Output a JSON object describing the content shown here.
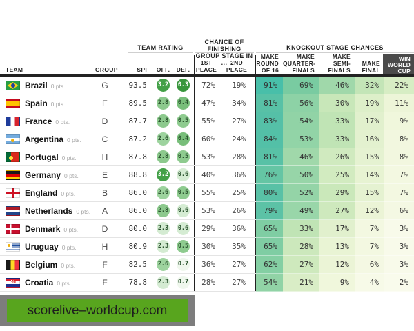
{
  "header_groups": {
    "team_rating": "TEAM RATING",
    "chance": "CHANCE OF FINISHING\nGROUP STAGE IN ...",
    "knockout": "KNOCKOUT STAGE CHANCES"
  },
  "columns": {
    "team": "TEAM",
    "group": "GROUP",
    "spi": "SPI",
    "off": "OFF.",
    "def": "DEF.",
    "p1": "1ST\nPLACE",
    "p2": "2ND\nPLACE",
    "r16": "MAKE\nROUND\nOF 16",
    "qf": "MAKE\nQUARTER-\nFINALS",
    "sf": "MAKE\nSEMI-\nFINALS",
    "final": "MAKE\nFINAL",
    "win": "WIN\nWORLD\nCUP"
  },
  "chart_data": {
    "type": "table",
    "columns": [
      "Team",
      "Points",
      "Group",
      "SPI",
      "Off.",
      "Def.",
      "1st place %",
      "2nd place %",
      "Make round of 16 %",
      "Make quarterfinals %",
      "Make semifinals %",
      "Make final %",
      "Win World Cup %"
    ],
    "rows": [
      {
        "name": "Brazil",
        "pts": "0 pts.",
        "flag": "brazil",
        "group": "G",
        "spi": 93.5,
        "off": 3.2,
        "def": 0.3,
        "p1": 72,
        "p2": 19,
        "r16": 91,
        "qf": 69,
        "sf": 46,
        "final": 32,
        "win": 22
      },
      {
        "name": "Spain",
        "pts": "0 pts.",
        "flag": "spain",
        "group": "E",
        "spi": 89.5,
        "off": 2.8,
        "def": 0.4,
        "p1": 47,
        "p2": 34,
        "r16": 81,
        "qf": 56,
        "sf": 30,
        "final": 19,
        "win": 11
      },
      {
        "name": "France",
        "pts": "0 pts.",
        "flag": "france",
        "group": "D",
        "spi": 87.7,
        "off": 2.8,
        "def": 0.5,
        "p1": 55,
        "p2": 27,
        "r16": 83,
        "qf": 54,
        "sf": 33,
        "final": 17,
        "win": 9
      },
      {
        "name": "Argentina",
        "pts": "0 pts.",
        "flag": "argentina",
        "group": "C",
        "spi": 87.2,
        "off": 2.6,
        "def": 0.4,
        "p1": 60,
        "p2": 24,
        "r16": 84,
        "qf": 53,
        "sf": 33,
        "final": 16,
        "win": 8
      },
      {
        "name": "Portugal",
        "pts": "0 pts.",
        "flag": "portugal",
        "group": "H",
        "spi": 87.8,
        "off": 2.8,
        "def": 0.5,
        "p1": 53,
        "p2": 28,
        "r16": 81,
        "qf": 46,
        "sf": 26,
        "final": 15,
        "win": 8
      },
      {
        "name": "Germany",
        "pts": "0 pts.",
        "flag": "germany",
        "group": "E",
        "spi": 88.8,
        "off": 3.2,
        "def": 0.6,
        "p1": 40,
        "p2": 36,
        "r16": 76,
        "qf": 50,
        "sf": 25,
        "final": 14,
        "win": 7
      },
      {
        "name": "England",
        "pts": "0 pts.",
        "flag": "england",
        "group": "B",
        "spi": 86.0,
        "off": 2.6,
        "def": 0.5,
        "p1": 55,
        "p2": 25,
        "r16": 80,
        "qf": 52,
        "sf": 29,
        "final": 15,
        "win": 7
      },
      {
        "name": "Netherlands",
        "pts": "0 pts.",
        "flag": "netherlands",
        "group": "A",
        "spi": 86.0,
        "off": 2.8,
        "def": 0.6,
        "p1": 53,
        "p2": 26,
        "r16": 79,
        "qf": 49,
        "sf": 27,
        "final": 12,
        "win": 6
      },
      {
        "name": "Denmark",
        "pts": "0 pts.",
        "flag": "denmark",
        "group": "D",
        "spi": 80.0,
        "off": 2.3,
        "def": 0.6,
        "p1": 29,
        "p2": 36,
        "r16": 65,
        "qf": 33,
        "sf": 17,
        "final": 7,
        "win": 3
      },
      {
        "name": "Uruguay",
        "pts": "0 pts.",
        "flag": "uruguay",
        "group": "H",
        "spi": 80.9,
        "off": 2.3,
        "def": 0.5,
        "p1": 30,
        "p2": 35,
        "r16": 65,
        "qf": 28,
        "sf": 13,
        "final": 7,
        "win": 3
      },
      {
        "name": "Belgium",
        "pts": "0 pts.",
        "flag": "belgium",
        "group": "F",
        "spi": 82.5,
        "off": 2.6,
        "def": 0.7,
        "p1": 36,
        "p2": 27,
        "r16": 62,
        "qf": 27,
        "sf": 12,
        "final": 6,
        "win": 3
      },
      {
        "name": "Croatia",
        "pts": "0 pts.",
        "flag": "croatia",
        "group": "F",
        "spi": 78.8,
        "off": 2.3,
        "def": 0.7,
        "p1": 28,
        "p2": 27,
        "r16": 54,
        "qf": 21,
        "sf": 9,
        "final": 4,
        "win": 2
      }
    ]
  },
  "banner": {
    "text": "scorelive–worldcup.com"
  },
  "colors": {
    "accent_teal": "#3abcaa",
    "rating_circle_dark": "#3f9b43",
    "win_header_bg": "#4a4a4a",
    "banner_green": "#58a51e",
    "banner_gray": "#7d7d7d"
  }
}
